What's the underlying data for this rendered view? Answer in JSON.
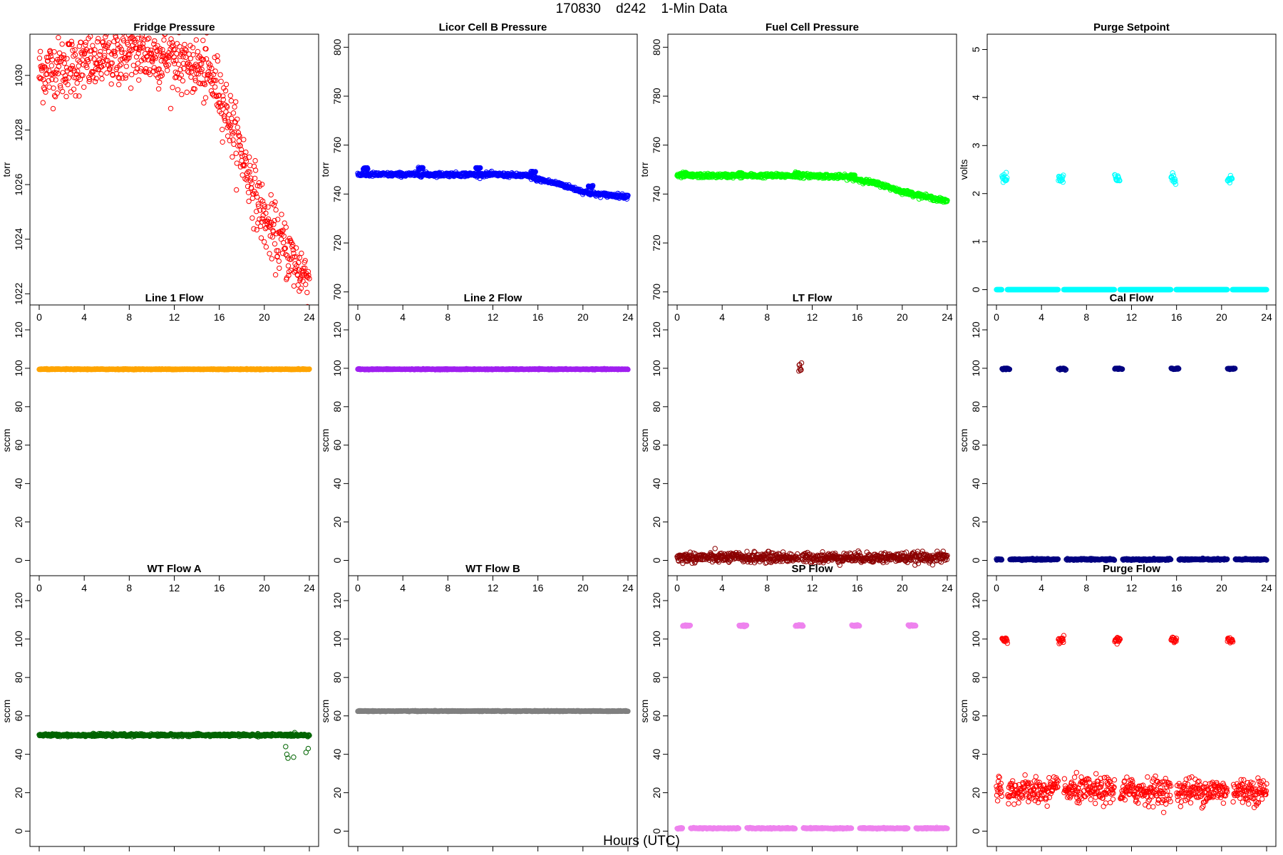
{
  "title": "170830    d242    1-Min Data",
  "x_caption": "Hours (UTC)",
  "chart_data": [
    {
      "type": "scatter",
      "title": "Fridge Pressure",
      "ylabel": "torr",
      "color": "#ff0000",
      "marker": "open-circle",
      "xlim": [
        0,
        24
      ],
      "xticks": [
        0,
        4,
        8,
        12,
        16,
        20,
        24
      ],
      "ylim": [
        1021.8,
        1031.3
      ],
      "yticks": [
        1022,
        1024,
        1026,
        1028,
        1030
      ],
      "profile": {
        "x": [
          0,
          2,
          4,
          6,
          8,
          10,
          12,
          14,
          15,
          16,
          17,
          18,
          19,
          20,
          21,
          22,
          23,
          24
        ],
        "y": [
          1030.1,
          1030.3,
          1030.4,
          1030.6,
          1030.8,
          1030.7,
          1030.7,
          1030.3,
          1030.0,
          1029.5,
          1028.3,
          1027.1,
          1025.9,
          1024.7,
          1024.1,
          1023.6,
          1022.9,
          1022.6
        ]
      },
      "noise": 0.55
    },
    {
      "type": "scatter",
      "title": "Licor Cell B Pressure",
      "ylabel": "torr",
      "color": "#0000ff",
      "marker": "open-circle",
      "xlim": [
        0,
        24
      ],
      "xticks": [
        0,
        4,
        8,
        12,
        16,
        20,
        24
      ],
      "ylim": [
        697,
        803
      ],
      "yticks": [
        700,
        720,
        740,
        760,
        780,
        800
      ],
      "profile": {
        "x": [
          0,
          4,
          8,
          12,
          15,
          16,
          18,
          20,
          21,
          24
        ],
        "y": [
          748,
          748,
          748,
          748,
          747.5,
          746,
          744,
          741,
          740,
          739
        ]
      },
      "noise": 0.4,
      "bumps": [
        {
          "x": 0.7,
          "y": 750.5
        },
        {
          "x": 5.6,
          "y": 750.5
        },
        {
          "x": 10.7,
          "y": 750.5
        },
        {
          "x": 15.6,
          "y": 749
        },
        {
          "x": 20.7,
          "y": 743
        }
      ]
    },
    {
      "type": "scatter",
      "title": "Fuel Cell Pressure",
      "ylabel": "torr",
      "color": "#00ff00",
      "marker": "open-circle",
      "xlim": [
        0,
        24
      ],
      "xticks": [
        0,
        4,
        8,
        12,
        16,
        20,
        24
      ],
      "ylim": [
        697,
        803
      ],
      "yticks": [
        700,
        720,
        740,
        760,
        780,
        800
      ],
      "profile": {
        "x": [
          0,
          4,
          8,
          12,
          15,
          16,
          18,
          20,
          21,
          24
        ],
        "y": [
          747.5,
          747.5,
          747.5,
          747.5,
          747,
          746,
          744,
          741,
          740,
          737
        ]
      },
      "noise": 0.4,
      "bumps": [
        {
          "x": 0.7,
          "y": 748.5
        },
        {
          "x": 5.6,
          "y": 748.5
        },
        {
          "x": 10.7,
          "y": 748.5
        },
        {
          "x": 15.6,
          "y": 747.5
        },
        {
          "x": 20.7,
          "y": 740.5
        }
      ]
    },
    {
      "type": "scatter",
      "title": "Purge Setpoint",
      "ylabel": "volts",
      "color": "#00ffff",
      "marker": "open-circle",
      "xlim": [
        0,
        24
      ],
      "xticks": [
        0,
        4,
        8,
        12,
        16,
        20,
        24
      ],
      "ylim": [
        -0.2,
        5.2
      ],
      "yticks": [
        0,
        1,
        2,
        3,
        4,
        5
      ],
      "profile": {
        "x": [
          0,
          24
        ],
        "y": [
          0,
          0
        ]
      },
      "noise": 0,
      "spikes": {
        "x": [
          0.5,
          5.5,
          10.5,
          15.5,
          20.5
        ],
        "y": 2.3,
        "width": 0.45,
        "spread": 0.05
      }
    },
    {
      "type": "scatter",
      "title": "Line 1 Flow",
      "ylabel": "sccm",
      "color": "#ffa500",
      "marker": "open-circle",
      "xlim": [
        0,
        24
      ],
      "xticks": [
        0,
        4,
        8,
        12,
        16,
        20,
        24
      ],
      "ylim": [
        -5,
        130
      ],
      "yticks": [
        0,
        20,
        40,
        60,
        80,
        100,
        120
      ],
      "profile": {
        "x": [
          0,
          24
        ],
        "y": [
          99.5,
          99.5
        ]
      },
      "noise": 0.1
    },
    {
      "type": "scatter",
      "title": "Line 2 Flow",
      "ylabel": "sccm",
      "color": "#a020f0",
      "marker": "open-circle",
      "xlim": [
        0,
        24
      ],
      "xticks": [
        0,
        4,
        8,
        12,
        16,
        20,
        24
      ],
      "ylim": [
        -5,
        130
      ],
      "yticks": [
        0,
        20,
        40,
        60,
        80,
        100,
        120
      ],
      "profile": {
        "x": [
          0,
          24
        ],
        "y": [
          99.5,
          99.5
        ]
      },
      "noise": 0.1
    },
    {
      "type": "scatter",
      "title": "LT Flow",
      "ylabel": "sccm",
      "color": "#8b0000",
      "marker": "open-circle",
      "xlim": [
        0,
        24
      ],
      "xticks": [
        0,
        4,
        8,
        12,
        16,
        20,
        24
      ],
      "ylim": [
        -5,
        130
      ],
      "yticks": [
        0,
        20,
        40,
        60,
        80,
        100,
        120
      ],
      "profile": {
        "x": [
          0,
          24
        ],
        "y": [
          1.5,
          1.5
        ]
      },
      "noise": 1.3,
      "spikes": {
        "x": [
          10.8
        ],
        "y": 99.5,
        "width": 0.25,
        "spread": 1.5
      }
    },
    {
      "type": "scatter",
      "title": "Cal Flow",
      "ylabel": "sccm",
      "color": "#000080",
      "marker": "open-circle",
      "xlim": [
        0,
        24
      ],
      "xticks": [
        0,
        4,
        8,
        12,
        16,
        20,
        24
      ],
      "ylim": [
        -5,
        130
      ],
      "yticks": [
        0,
        20,
        40,
        60,
        80,
        100,
        120
      ],
      "profile": {
        "x": [
          0,
          24
        ],
        "y": [
          0.5,
          0.5
        ]
      },
      "noise": 0.2,
      "spikes": {
        "x": [
          0.5,
          5.5,
          10.5,
          15.5,
          20.5
        ],
        "y": 99.7,
        "width": 0.7,
        "spread": 0.2
      }
    },
    {
      "type": "scatter",
      "title": "WT Flow A",
      "ylabel": "sccm",
      "color": "#006400",
      "marker": "open-circle",
      "xlim": [
        0,
        24
      ],
      "xticks": [
        0,
        4,
        8,
        12,
        16,
        20,
        24
      ],
      "ylim": [
        -5,
        130
      ],
      "yticks": [
        0,
        20,
        40,
        60,
        80,
        100,
        120
      ],
      "profile": {
        "x": [
          0,
          24
        ],
        "y": [
          50,
          50
        ]
      },
      "noise": 0.3,
      "outliers": [
        {
          "x": 21.9,
          "y": 44
        },
        {
          "x": 22.0,
          "y": 40
        },
        {
          "x": 22.1,
          "y": 38
        },
        {
          "x": 22.6,
          "y": 38.5
        },
        {
          "x": 23.7,
          "y": 41
        },
        {
          "x": 23.9,
          "y": 43
        }
      ]
    },
    {
      "type": "scatter",
      "title": "WT Flow B",
      "ylabel": "sccm",
      "color": "#808080",
      "marker": "open-circle",
      "xlim": [
        0,
        24
      ],
      "xticks": [
        0,
        4,
        8,
        12,
        16,
        20,
        24
      ],
      "ylim": [
        -5,
        130
      ],
      "yticks": [
        0,
        20,
        40,
        60,
        80,
        100,
        120
      ],
      "profile": {
        "x": [
          0,
          24
        ],
        "y": [
          62.5,
          62.5
        ]
      },
      "noise": 0.1
    },
    {
      "type": "scatter",
      "title": "SP Flow",
      "ylabel": "sccm",
      "color": "#ee82ee",
      "marker": "open-circle",
      "xlim": [
        0,
        24
      ],
      "xticks": [
        0,
        4,
        8,
        12,
        16,
        20,
        24
      ],
      "ylim": [
        -5,
        130
      ],
      "yticks": [
        0,
        20,
        40,
        60,
        80,
        100,
        120
      ],
      "profile": {
        "x": [
          0,
          24
        ],
        "y": [
          1.5,
          1.5
        ]
      },
      "noise": 0.15,
      "spikes": {
        "x": [
          0.5,
          5.5,
          10.5,
          15.5,
          20.5
        ],
        "y": 107,
        "width": 0.7,
        "spread": 0.2
      }
    },
    {
      "type": "scatter",
      "title": "Purge Flow",
      "ylabel": "sccm",
      "color": "#ff0000",
      "marker": "open-circle",
      "xlim": [
        0,
        24
      ],
      "xticks": [
        0,
        4,
        8,
        12,
        16,
        20,
        24
      ],
      "ylim": [
        -5,
        130
      ],
      "yticks": [
        0,
        20,
        40,
        60,
        80,
        100,
        120
      ],
      "profile": {
        "x": [
          0,
          24
        ],
        "y": [
          21,
          21
        ]
      },
      "noise": 3.4,
      "spikes": {
        "x": [
          0.5,
          5.5,
          10.5,
          15.5,
          20.5
        ],
        "y": 99.5,
        "width": 0.5,
        "spread": 0.8
      }
    }
  ]
}
